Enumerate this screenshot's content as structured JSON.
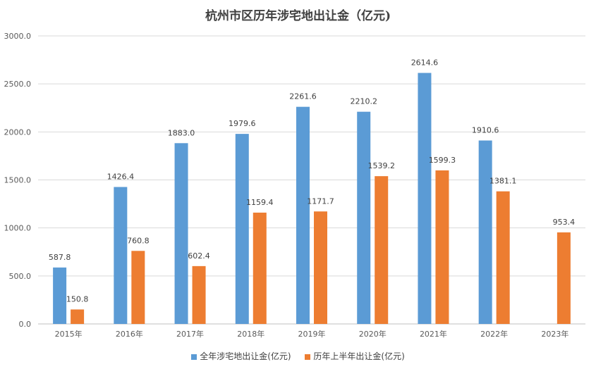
{
  "chart_data": {
    "type": "bar",
    "title": "杭州市区历年涉宅地出让金（亿元)",
    "categories": [
      "2015年",
      "2016年",
      "2017年",
      "2018年",
      "2019年",
      "2020年",
      "2021年",
      "2022年",
      "2023年"
    ],
    "series": [
      {
        "name": "全年涉宅地出让金(亿元)",
        "color": "#5b9bd5",
        "values": [
          587.8,
          1426.4,
          1883.0,
          1979.6,
          2261.6,
          2210.2,
          2614.6,
          1910.6,
          null
        ]
      },
      {
        "name": "历年上半年出让金(亿元)",
        "color": "#ed7d31",
        "values": [
          150.8,
          760.8,
          602.4,
          1159.4,
          1171.7,
          1539.2,
          1599.3,
          1381.1,
          953.4
        ]
      }
    ],
    "yticks": [
      "0.0",
      "500.0",
      "1000.0",
      "1500.0",
      "2000.0",
      "2500.0",
      "3000.0"
    ],
    "ylim": [
      0,
      3000
    ],
    "grid": true,
    "legend_position": "bottom"
  }
}
